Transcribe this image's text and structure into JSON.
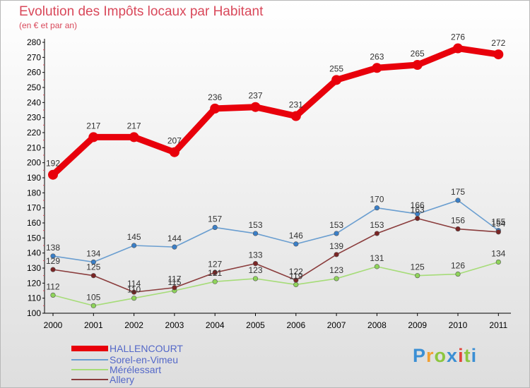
{
  "header": {
    "title": "Evolution des Impôts locaux par Habitant",
    "subtitle": "(en € et par an)"
  },
  "logo": {
    "letters": [
      "P",
      "r",
      "o",
      "x",
      "i",
      "t",
      "i"
    ],
    "colors": [
      "#3b8fd4",
      "#f2a033",
      "#8cc63f",
      "#3b8fd4",
      "#e2453c",
      "#8cc63f",
      "#3b8fd4"
    ]
  },
  "chart_data": {
    "type": "line",
    "x": [
      "2000",
      "2001",
      "2002",
      "2003",
      "2004",
      "2005",
      "2006",
      "2007",
      "2008",
      "2009",
      "2010",
      "2011"
    ],
    "yticks": [
      100,
      110,
      120,
      130,
      140,
      150,
      160,
      170,
      180,
      190,
      200,
      210,
      220,
      230,
      240,
      250,
      260,
      270,
      280
    ],
    "ylim": [
      100,
      280
    ],
    "grid": false,
    "legend_position": "bottom-left",
    "series": [
      {
        "name": "HALLENCOURT",
        "values": [
          192,
          217,
          217,
          207,
          236,
          237,
          231,
          255,
          263,
          265,
          276,
          272
        ],
        "color": "#e8000b",
        "dot": "#e8000b",
        "emphasis": true
      },
      {
        "name": "Sorel-en-Vimeu",
        "values": [
          138,
          134,
          145,
          144,
          157,
          153,
          146,
          153,
          170,
          166,
          175,
          155
        ],
        "color": "#6a9ed0",
        "dot": "#3a7fc8",
        "emphasis": false
      },
      {
        "name": "Mérélessart",
        "values": [
          112,
          105,
          110,
          115,
          121,
          123,
          119,
          123,
          131,
          125,
          126,
          134
        ],
        "color": "#a6dc78",
        "dot": "#8fd45a",
        "emphasis": false
      },
      {
        "name": "Allery",
        "values": [
          129,
          125,
          114,
          117,
          127,
          133,
          122,
          139,
          153,
          163,
          156,
          154
        ],
        "color": "#8a3c3c",
        "dot": "#7a2525",
        "emphasis": false
      }
    ]
  }
}
